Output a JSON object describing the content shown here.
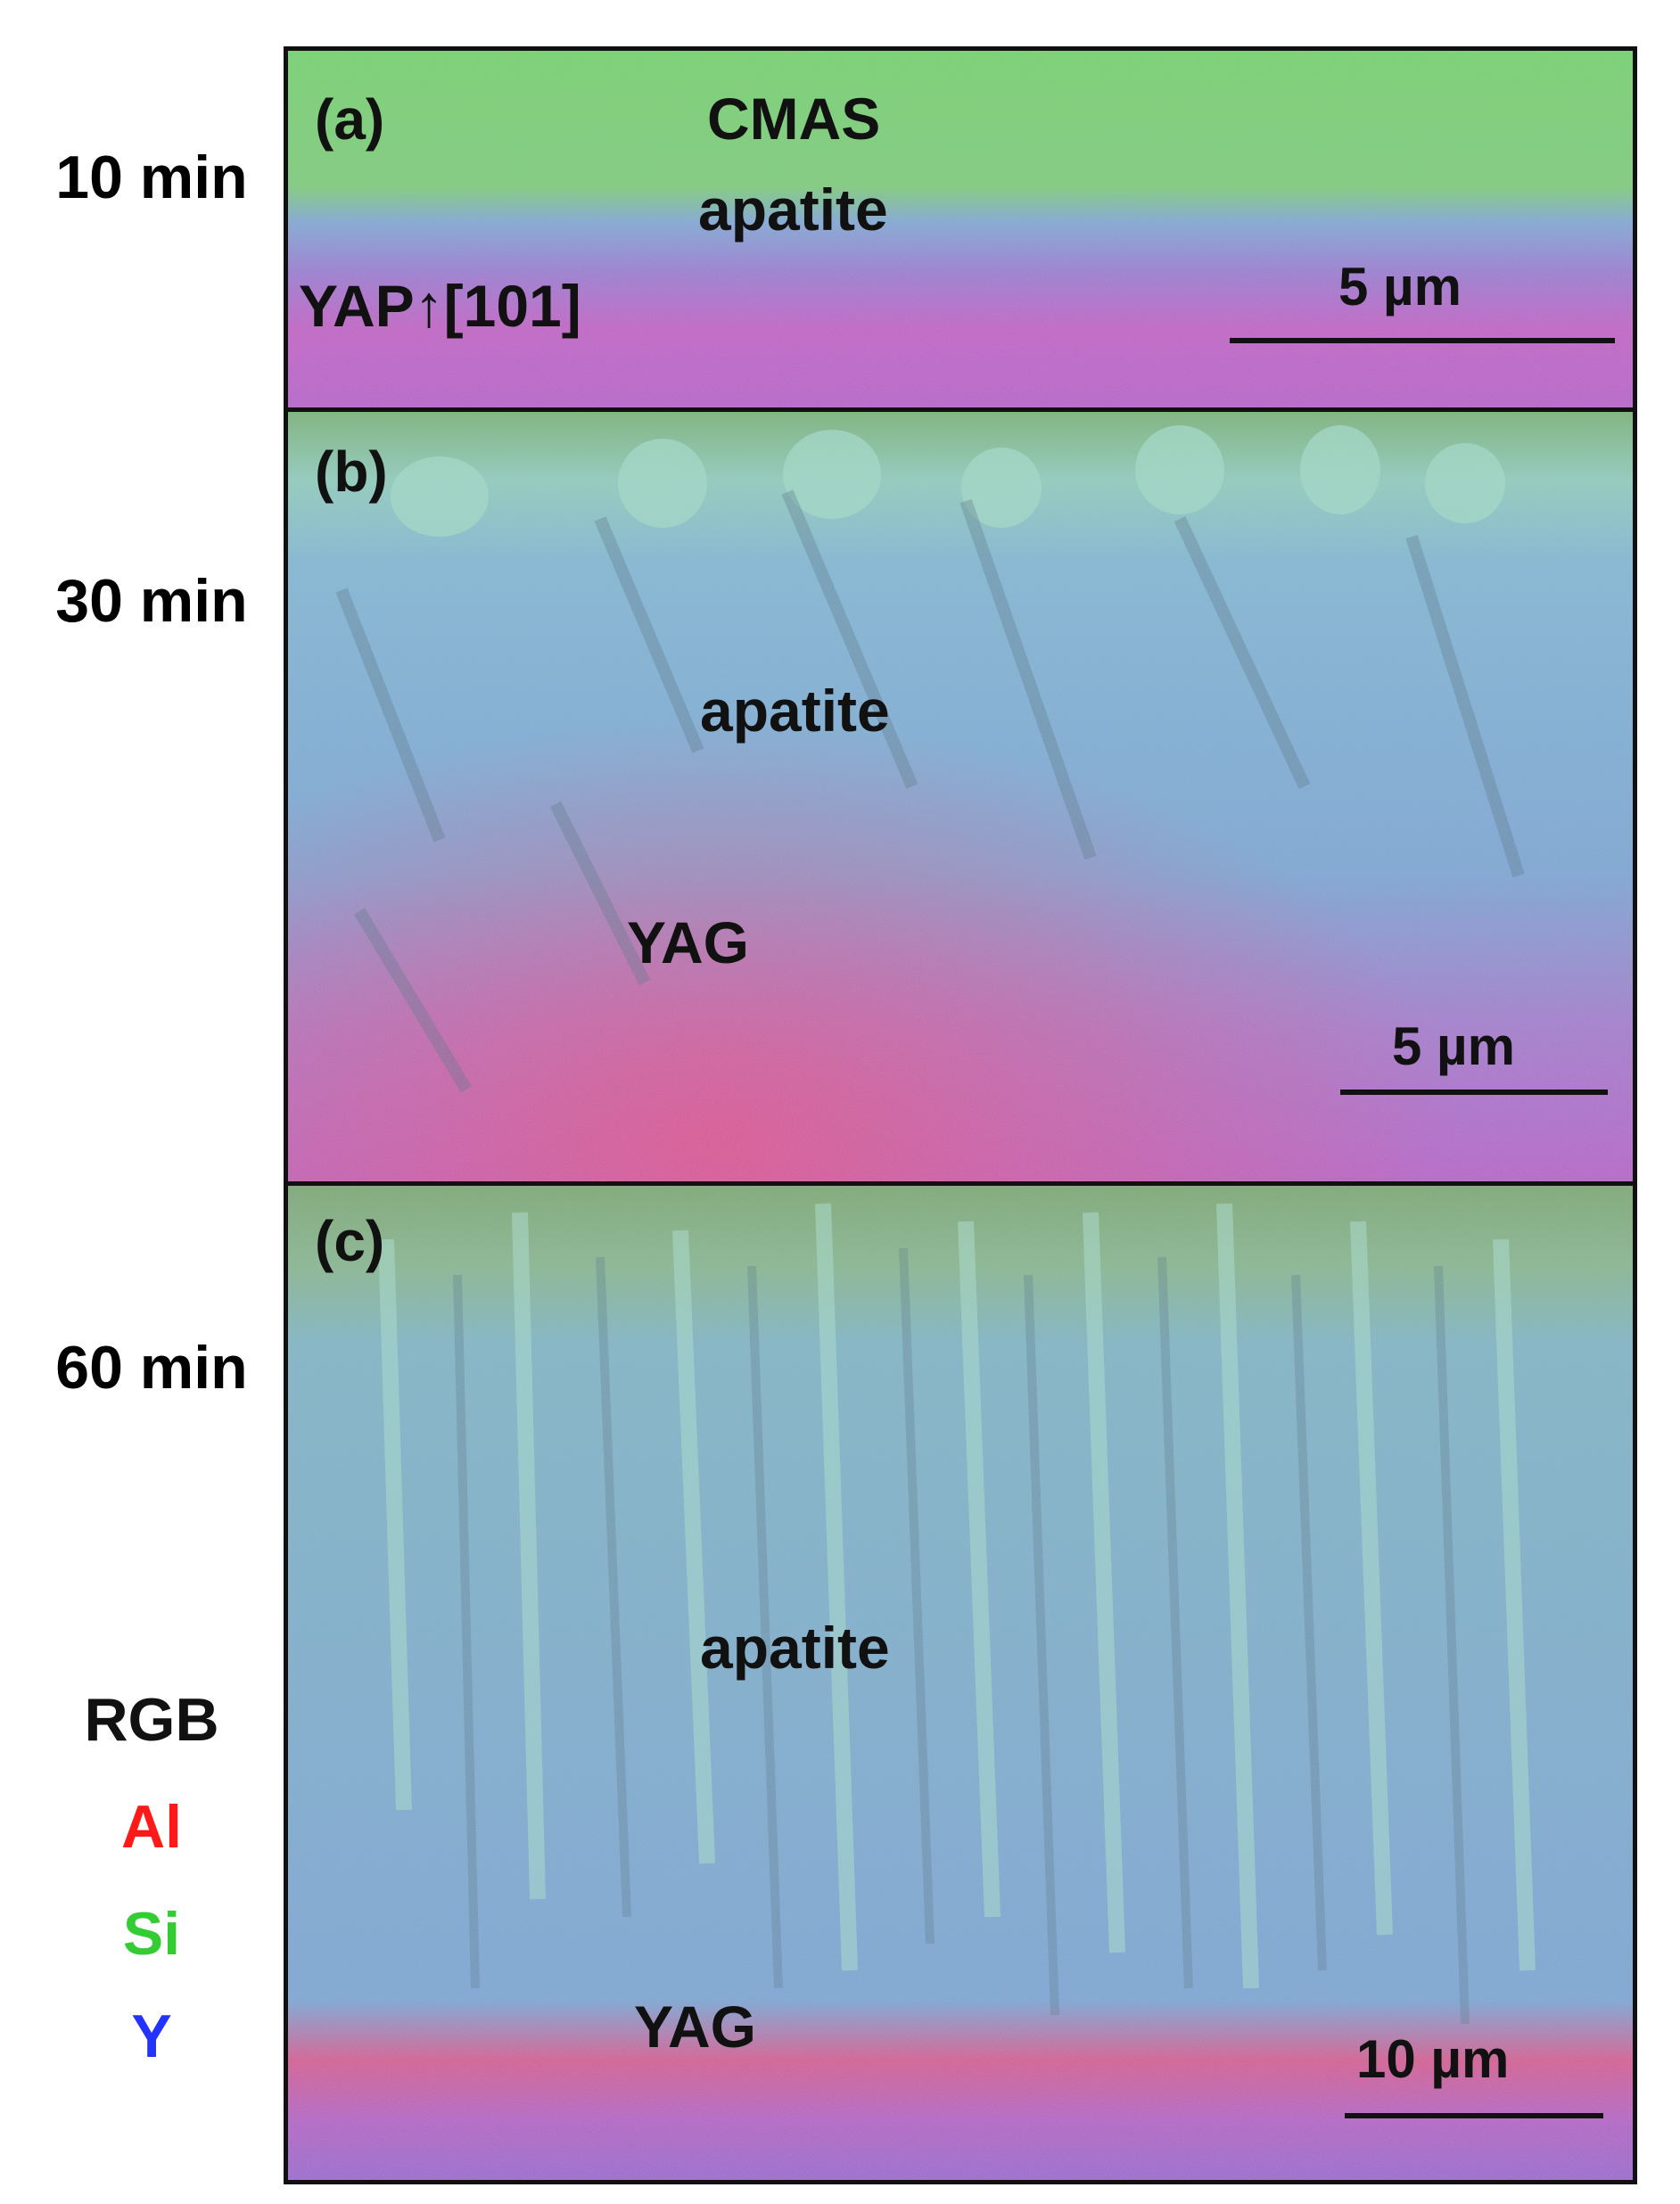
{
  "time_labels": [
    "10 min",
    "30 min",
    "60 min"
  ],
  "legend": {
    "title": "RGB",
    "items": [
      {
        "label": "Al",
        "color": "#ff1a1a"
      },
      {
        "label": "Si",
        "color": "#33cc33"
      },
      {
        "label": "Y",
        "color": "#2233ff"
      }
    ]
  },
  "panels": [
    {
      "tag": "(a)",
      "phases": [
        "CMAS",
        "apatite",
        "YAP↑[101]"
      ],
      "scale_bar": "5 µm"
    },
    {
      "tag": "(b)",
      "phases": [
        "apatite",
        "YAG"
      ],
      "scale_bar": "5 µm"
    },
    {
      "tag": "(c)",
      "phases": [
        "apatite",
        "YAG"
      ],
      "scale_bar": "10 µm"
    }
  ],
  "colors": {
    "cmas": "#6fd36a",
    "apatite": "#6fa8d8",
    "substrate": "#c060c8",
    "yag": "#e05a9a"
  }
}
